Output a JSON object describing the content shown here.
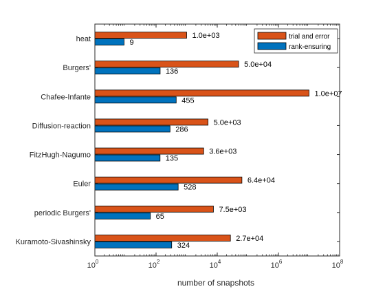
{
  "chart_data": {
    "type": "bar",
    "orientation": "horizontal",
    "xscale": "log",
    "xlim": [
      1,
      100000000
    ],
    "xticks": [
      1,
      100,
      10000,
      1000000,
      100000000
    ],
    "xtick_labels": [
      {
        "base": "10",
        "exp": "0"
      },
      {
        "base": "10",
        "exp": "2"
      },
      {
        "base": "10",
        "exp": "4"
      },
      {
        "base": "10",
        "exp": "6"
      },
      {
        "base": "10",
        "exp": "8"
      }
    ],
    "xlabel": "number of snapshots",
    "legend_position": "top-right",
    "categories": [
      "heat",
      "Burgers'",
      "Chafee-Infante",
      "Diffusion-reaction",
      "FitzHugh-Nagumo",
      "Euler",
      "periodic Burgers'",
      "Kuramoto-Sivashinsky"
    ],
    "series": [
      {
        "name": "trial and error",
        "color": "#D95319",
        "values": [
          1000,
          50000,
          10000000,
          5000,
          3600,
          64000,
          7500,
          27000
        ],
        "labels": [
          "1.0e+03",
          "5.0e+04",
          "1.0e+07",
          "5.0e+03",
          "3.6e+03",
          "6.4e+04",
          "7.5e+03",
          "2.7e+04"
        ]
      },
      {
        "name": "rank-ensuring",
        "color": "#0072BD",
        "values": [
          9,
          136,
          455,
          286,
          135,
          528,
          65,
          324
        ],
        "labels": [
          "9",
          "136",
          "455",
          "286",
          "135",
          "528",
          "65",
          "324"
        ]
      }
    ]
  }
}
